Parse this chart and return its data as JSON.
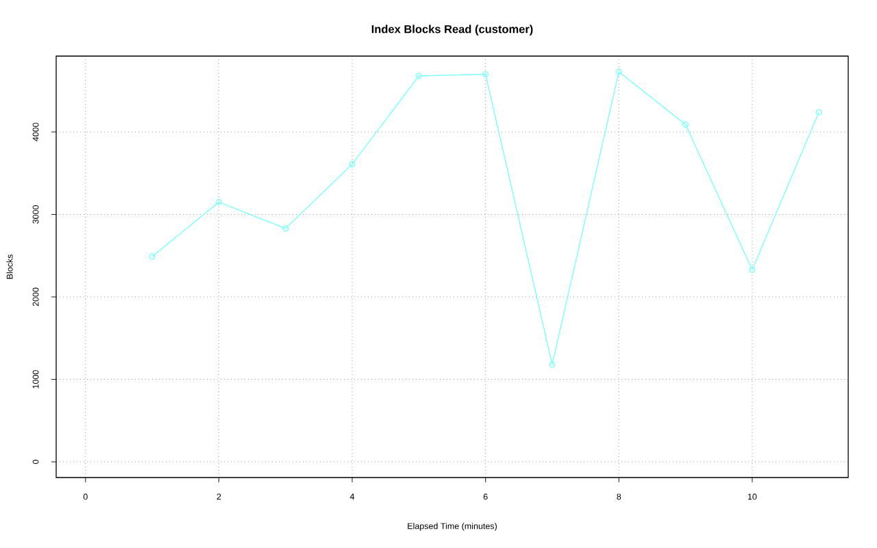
{
  "chart_data": {
    "type": "line",
    "title": "Index Blocks Read (customer)",
    "xlabel": "Elapsed Time (minutes)",
    "ylabel": "Blocks",
    "x": [
      1,
      2,
      3,
      4,
      5,
      6,
      7,
      8,
      9,
      10,
      11
    ],
    "values": [
      2490,
      3150,
      2830,
      3610,
      4680,
      4700,
      1180,
      4730,
      4090,
      2330,
      4240
    ],
    "color": "#80ffff",
    "xlim": [
      -0.44,
      11.44
    ],
    "ylim": [
      -190,
      4920
    ],
    "xticks": [
      0,
      2,
      4,
      6,
      8,
      10
    ],
    "yticks": [
      0,
      1000,
      2000,
      3000,
      4000
    ],
    "grid": true,
    "marker": "circle",
    "line_style": "solid"
  }
}
